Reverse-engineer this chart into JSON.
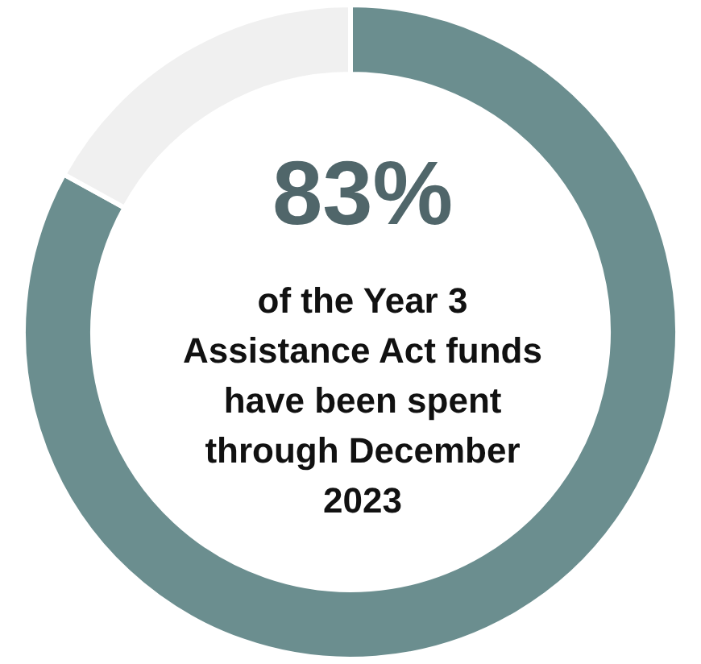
{
  "chart_data": {
    "type": "donut",
    "categories": [
      null,
      null
    ],
    "values": [
      83,
      17
    ],
    "colors": [
      "#6b8e8f",
      "#f0f0f0"
    ],
    "annotations": [
      "83%",
      "of the Year 3\nAssistance Act funds\nhave been spent\nthrough December\n2023"
    ]
  }
}
